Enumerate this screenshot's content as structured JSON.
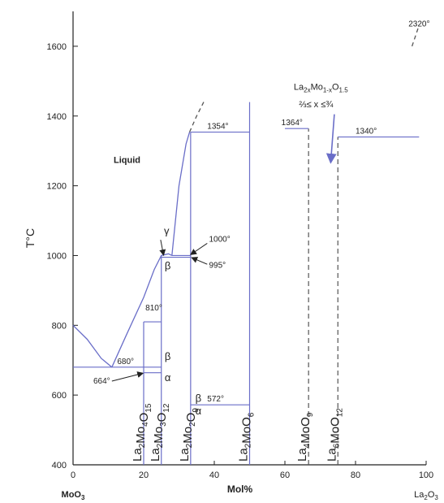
{
  "chart_data": {
    "type": "line",
    "title": "",
    "ylabel": "T°C",
    "xlabel": "Mol%",
    "x_left_label": "MoO3",
    "x_right_label": "La2O3",
    "xlim": [
      0,
      100
    ],
    "ylim": [
      400,
      1700
    ],
    "xticks": [
      0,
      20,
      40,
      60,
      80,
      100
    ],
    "yticks": [
      400,
      600,
      800,
      1000,
      1200,
      1400,
      1600
    ],
    "line_color": "#6a6ec8",
    "liquid_label": "Liquid",
    "liquidus_left": {
      "x": [
        0,
        4,
        8,
        11
      ],
      "y": [
        800,
        760,
        705,
        680
      ]
    },
    "liquidus_mid": {
      "x": [
        11,
        15,
        20,
        23,
        25,
        27,
        28
      ],
      "y": [
        680,
        770,
        880,
        960,
        1000,
        1005,
        1000
      ]
    },
    "liquidus_right": {
      "x": [
        28,
        30,
        32,
        33
      ],
      "y": [
        1000,
        1200,
        1320,
        1354
      ]
    },
    "liquidus_dashed": {
      "x": [
        33,
        35,
        37
      ],
      "y": [
        1354,
        1400,
        1440
      ]
    },
    "liquidus_far_dashed": {
      "x": [
        96,
        98
      ],
      "y": [
        1600,
        1660
      ]
    },
    "horizontal_lines": [
      {
        "x1": 0,
        "x2": 25,
        "y": 680,
        "label": "680°"
      },
      {
        "x1": 20,
        "x2": 25,
        "y": 664,
        "label": "664°"
      },
      {
        "x1": 20,
        "x2": 25,
        "y": 810,
        "label": "810°"
      },
      {
        "x1": 25,
        "x2": 33.3,
        "y": 995,
        "label": "995°"
      },
      {
        "x1": 28,
        "x2": 33.3,
        "y": 1000,
        "label": "1000°"
      },
      {
        "x1": 33.3,
        "x2": 50,
        "y": 1354,
        "label": "1354°"
      },
      {
        "x1": 33.3,
        "x2": 50,
        "y": 572,
        "label": "572°"
      },
      {
        "x1": 60,
        "x2": 66.7,
        "y": 1364,
        "label": "1364°"
      },
      {
        "x1": 75,
        "x2": 98,
        "y": 1340,
        "label": "1340°"
      }
    ],
    "top_label": "2320°",
    "phases": [
      {
        "name": "La2Mo4O15",
        "main": "La",
        "s1": "2",
        "m2": "Mo",
        "s2": "4",
        "m3": "O",
        "s3": "15",
        "x": 20,
        "top": 810,
        "dashed": false
      },
      {
        "name": "La2Mo3O12",
        "main": "La",
        "s1": "2",
        "m2": "Mo",
        "s2": "3",
        "m3": "O",
        "s3": "12",
        "x": 25,
        "top": 1000,
        "dashed": false
      },
      {
        "name": "La2Mo2O9",
        "main": "La",
        "s1": "2",
        "m2": "Mo",
        "s2": "2",
        "m3": "O",
        "s3": "9",
        "x": 33.3,
        "top": 1354,
        "dashed": false
      },
      {
        "name": "La2MoO6",
        "main": "La",
        "s1": "2",
        "m2": "MoO",
        "s2": "",
        "m3": "",
        "s3": "6",
        "x": 50,
        "top": 1440,
        "dashed": false
      },
      {
        "name": "La4MoO9",
        "main": "La",
        "s1": "4",
        "m2": "MoO",
        "s2": "",
        "m3": "",
        "s3": "9",
        "x": 66.7,
        "top": 1364,
        "dashed": true
      },
      {
        "name": "La6MoO12",
        "main": "La",
        "s1": "6",
        "m2": "MoO",
        "s2": "",
        "m3": "",
        "s3": "12",
        "x": 75,
        "top": 1340,
        "dashed": true
      }
    ],
    "greek": [
      {
        "text": "γ",
        "x": 26.5,
        "y": 1060
      },
      {
        "text": "β",
        "x": 26.8,
        "y": 960
      },
      {
        "text": "β",
        "x": 26.8,
        "y": 700
      },
      {
        "text": "α",
        "x": 26.8,
        "y": 640
      },
      {
        "text": "β",
        "x": 35.5,
        "y": 580
      },
      {
        "text": "α",
        "x": 35.5,
        "y": 545
      }
    ],
    "annotation": {
      "line1": "La2xMo1-xO1.5",
      "line2": "⅔≤ x ≤¾",
      "arrow_to": [
        73,
        1270
      ]
    }
  }
}
